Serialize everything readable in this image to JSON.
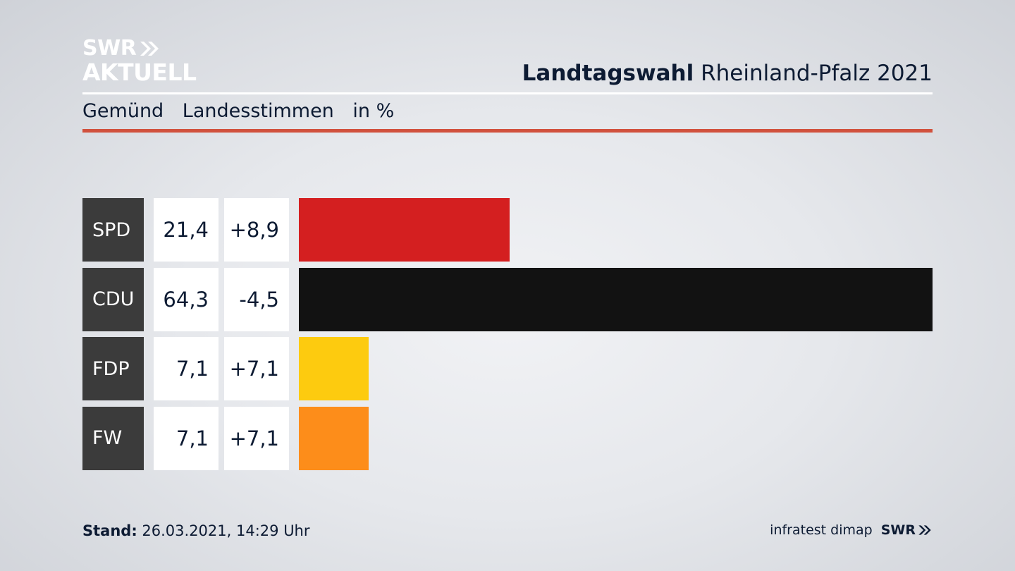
{
  "brand": {
    "line1": "SWR",
    "line2": "AKTUELL"
  },
  "header": {
    "title_bold": "Landtagswahl",
    "title_rest": "Rheinland-Pfalz 2021"
  },
  "subtitle": {
    "place": "Gemünd",
    "kind": "Landesstimmen",
    "unit": "in %"
  },
  "footer": {
    "stand_label": "Stand:",
    "stand_value": "26.03.2021, 14:29 Uhr",
    "source": "infratest dimap",
    "brand": "SWR"
  },
  "colors": {
    "accent_rule": "#d1513d",
    "party_box": "#3b3b3b"
  },
  "chart_data": {
    "type": "bar",
    "orientation": "horizontal",
    "categories": [
      "SPD",
      "CDU",
      "FDP",
      "FW"
    ],
    "values": [
      21.4,
      64.3,
      7.1,
      7.1
    ],
    "value_labels": [
      "21,4",
      "64,3",
      "7,1",
      "7,1"
    ],
    "changes": [
      8.9,
      -4.5,
      7.1,
      7.1
    ],
    "change_labels": [
      "+8,9",
      "-4,5",
      "+7,1",
      "+7,1"
    ],
    "colors": [
      "#d41f20",
      "#121212",
      "#fdcb0f",
      "#fd8d1a"
    ],
    "xlim": [
      0,
      64.3
    ]
  }
}
